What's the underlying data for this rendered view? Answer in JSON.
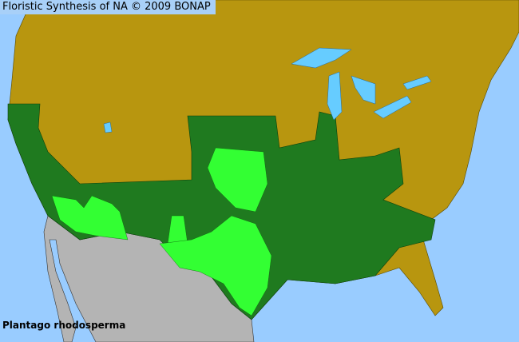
{
  "header": {
    "title": "Floristic Synthesis of NA © 2009 BONAP"
  },
  "map": {
    "species": "Plantago rhodosperma",
    "colors": {
      "ocean": "#99ccff",
      "lakes": "#66ccff",
      "species_absent": "#b8960f",
      "present_in_state": "#1f7a1f",
      "present_in_county": "#33ff33",
      "outside_region": "#b4b4b4"
    }
  }
}
